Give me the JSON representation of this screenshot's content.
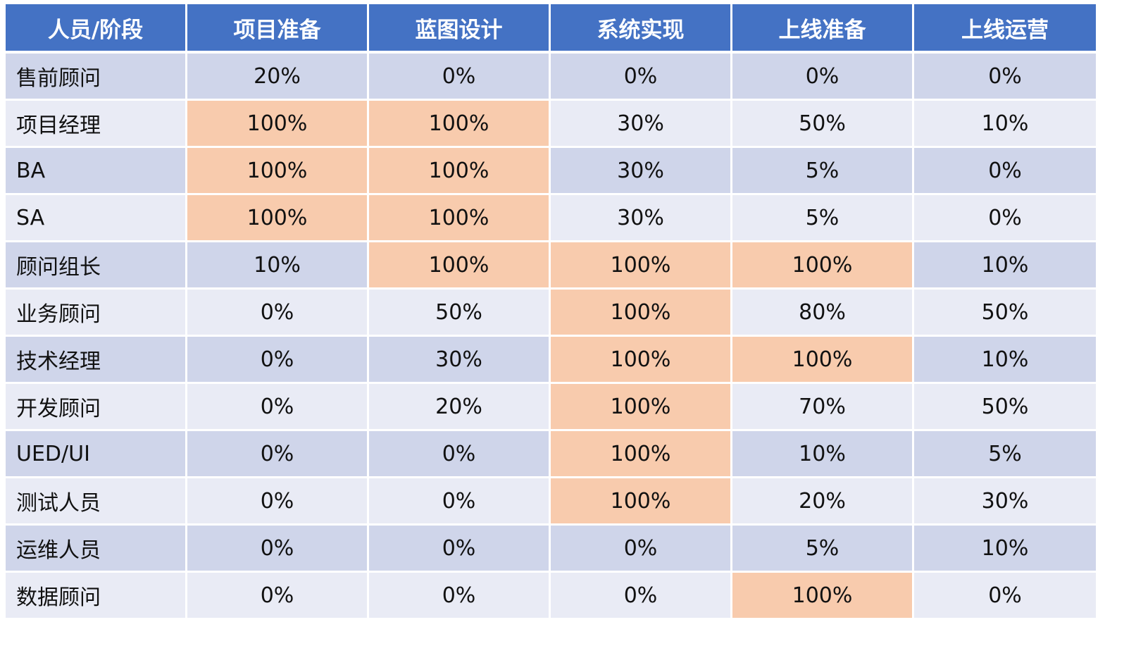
{
  "table": {
    "headers": [
      "人员/阶段",
      "项目准备",
      "蓝图设计",
      "系统实现",
      "上线准备",
      "上线运营"
    ],
    "rows": [
      {
        "role": "售前顾问",
        "values": [
          "20%",
          "0%",
          "0%",
          "0%",
          "0%"
        ],
        "highlight": [
          false,
          false,
          false,
          false,
          false
        ]
      },
      {
        "role": "项目经理",
        "values": [
          "100%",
          "100%",
          "30%",
          "50%",
          "10%"
        ],
        "highlight": [
          true,
          true,
          false,
          false,
          false
        ]
      },
      {
        "role": "BA",
        "values": [
          "100%",
          "100%",
          "30%",
          "5%",
          "0%"
        ],
        "highlight": [
          true,
          true,
          false,
          false,
          false
        ]
      },
      {
        "role": "SA",
        "values": [
          "100%",
          "100%",
          "30%",
          "5%",
          "0%"
        ],
        "highlight": [
          true,
          true,
          false,
          false,
          false
        ]
      },
      {
        "role": "顾问组长",
        "values": [
          "10%",
          "100%",
          "100%",
          "100%",
          "10%"
        ],
        "highlight": [
          false,
          true,
          true,
          true,
          false
        ]
      },
      {
        "role": "业务顾问",
        "values": [
          "0%",
          "50%",
          "100%",
          "80%",
          "50%"
        ],
        "highlight": [
          false,
          false,
          true,
          false,
          false
        ]
      },
      {
        "role": "技术经理",
        "values": [
          "0%",
          "30%",
          "100%",
          "100%",
          "10%"
        ],
        "highlight": [
          false,
          false,
          true,
          true,
          false
        ]
      },
      {
        "role": "开发顾问",
        "values": [
          "0%",
          "20%",
          "100%",
          "70%",
          "50%"
        ],
        "highlight": [
          false,
          false,
          true,
          false,
          false
        ]
      },
      {
        "role": "UED/UI",
        "values": [
          "0%",
          "0%",
          "100%",
          "10%",
          "5%"
        ],
        "highlight": [
          false,
          false,
          true,
          false,
          false
        ]
      },
      {
        "role": "测试人员",
        "values": [
          "0%",
          "0%",
          "100%",
          "20%",
          "30%"
        ],
        "highlight": [
          false,
          false,
          true,
          false,
          false
        ]
      },
      {
        "role": "运维人员",
        "values": [
          "0%",
          "0%",
          "0%",
          "5%",
          "10%"
        ],
        "highlight": [
          false,
          false,
          false,
          false,
          false
        ]
      },
      {
        "role": "数据顾问",
        "values": [
          "0%",
          "0%",
          "0%",
          "100%",
          "0%"
        ],
        "highlight": [
          false,
          false,
          false,
          true,
          false
        ]
      }
    ]
  },
  "colors": {
    "header_bg": "#4472c4",
    "row_odd_bg": "#cfd5ea",
    "row_even_bg": "#e9ebf5",
    "highlight_bg": "#f8cbad"
  }
}
